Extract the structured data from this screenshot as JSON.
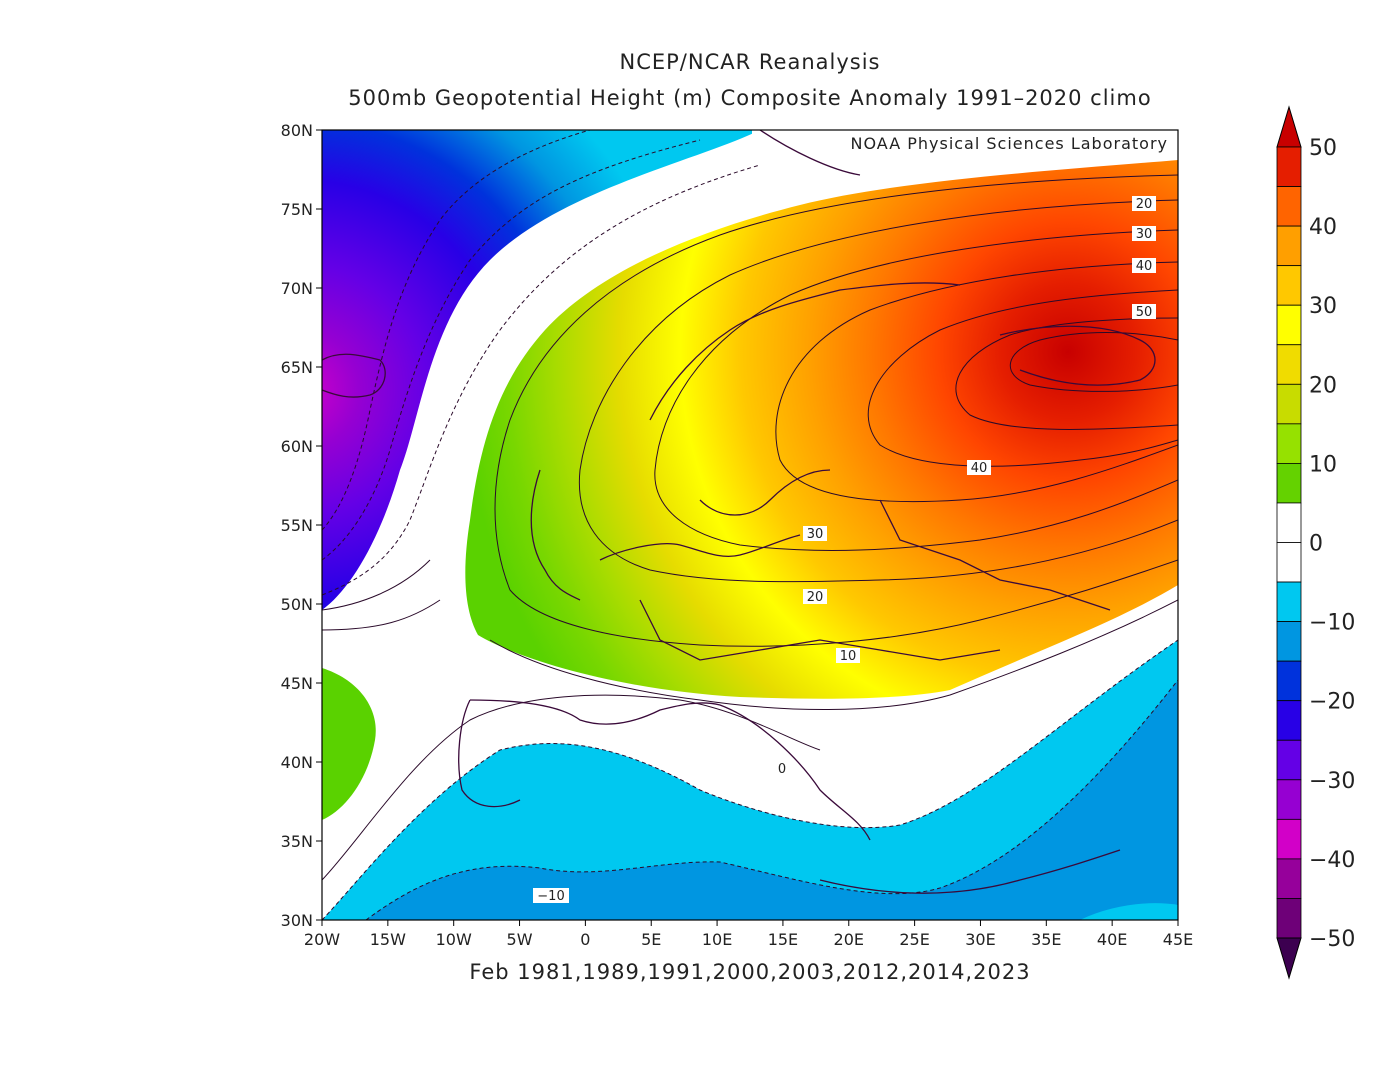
{
  "title": "NCEP/NCAR Reanalysis",
  "subtitle": "500mb Geopotential Height (m) Composite Anomaly 1991–2020 climo",
  "credit": "NOAA Physical Sciences Laboratory",
  "caption": "Feb 1981,1989,1991,2000,2003,2012,2014,2023",
  "map": {
    "lat_ticks": [
      "80N",
      "75N",
      "70N",
      "65N",
      "60N",
      "55N",
      "50N",
      "45N",
      "40N",
      "35N",
      "30N"
    ],
    "lon_ticks": [
      "20W",
      "15W",
      "10W",
      "5W",
      "0",
      "5E",
      "10E",
      "15E",
      "20E",
      "25E",
      "30E",
      "35E",
      "40E",
      "45E"
    ],
    "contour_labels": [
      "20",
      "30",
      "40",
      "50",
      "40",
      "30",
      "20",
      "10",
      "0",
      "−10"
    ]
  },
  "colorbar": {
    "labels": [
      "50",
      "40",
      "30",
      "20",
      "10",
      "0",
      "−10",
      "−20",
      "−30",
      "−40",
      "−50"
    ],
    "colors": [
      "#e51e00",
      "#ff6400",
      "#ff9f00",
      "#ffc800",
      "#ffff00",
      "#f0dc00",
      "#c8dc00",
      "#96e100",
      "#64d200",
      "#ffffff",
      "#ffffff",
      "#00c8f0",
      "#0096e1",
      "#0032dc",
      "#2800e6",
      "#6400e6",
      "#9600d2",
      "#d200c8",
      "#96009b",
      "#6e0078"
    ],
    "cap_colors": [
      "#c80000",
      "#3c0050"
    ]
  }
}
